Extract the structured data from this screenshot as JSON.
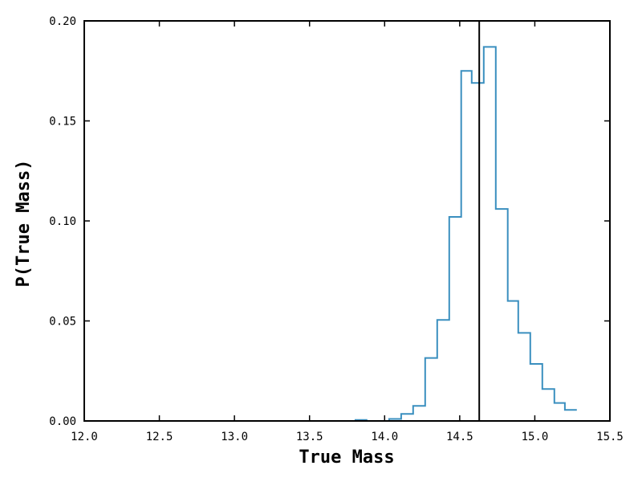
{
  "chart_data": {
    "type": "histogram",
    "xlabel": "True Mass",
    "ylabel": "P(True Mass)",
    "xlim": [
      12.0,
      15.5
    ],
    "ylim": [
      0.0,
      0.2
    ],
    "xticks": [
      "12.0",
      "12.5",
      "13.0",
      "13.5",
      "14.0",
      "14.5",
      "15.0",
      "15.5"
    ],
    "yticks": [
      "0.00",
      "0.05",
      "0.10",
      "0.15",
      "0.20"
    ],
    "grid": false,
    "line_color": "#3a8fbf",
    "vertical_line": {
      "x": 14.63,
      "color": "#000000"
    },
    "series": [
      {
        "bins": [
          {
            "x0": 13.8,
            "x1": 13.88,
            "value": 0.0005
          },
          {
            "x0": 13.88,
            "x1": 14.03,
            "value": 0.0
          },
          {
            "x0": 14.03,
            "x1": 14.11,
            "value": 0.001
          },
          {
            "x0": 14.11,
            "x1": 14.19,
            "value": 0.0035
          },
          {
            "x0": 14.19,
            "x1": 14.27,
            "value": 0.0075
          },
          {
            "x0": 14.27,
            "x1": 14.35,
            "value": 0.0315
          },
          {
            "x0": 14.35,
            "x1": 14.43,
            "value": 0.0505
          },
          {
            "x0": 14.43,
            "x1": 14.51,
            "value": 0.102
          },
          {
            "x0": 14.51,
            "x1": 14.58,
            "value": 0.175
          },
          {
            "x0": 14.58,
            "x1": 14.66,
            "value": 0.169
          },
          {
            "x0": 14.66,
            "x1": 14.74,
            "value": 0.187
          },
          {
            "x0": 14.74,
            "x1": 14.82,
            "value": 0.106
          },
          {
            "x0": 14.82,
            "x1": 14.89,
            "value": 0.06
          },
          {
            "x0": 14.89,
            "x1": 14.97,
            "value": 0.044
          },
          {
            "x0": 14.97,
            "x1": 15.05,
            "value": 0.0285
          },
          {
            "x0": 15.05,
            "x1": 15.13,
            "value": 0.016
          },
          {
            "x0": 15.13,
            "x1": 15.2,
            "value": 0.009
          },
          {
            "x0": 15.2,
            "x1": 15.28,
            "value": 0.0055
          }
        ]
      }
    ]
  }
}
